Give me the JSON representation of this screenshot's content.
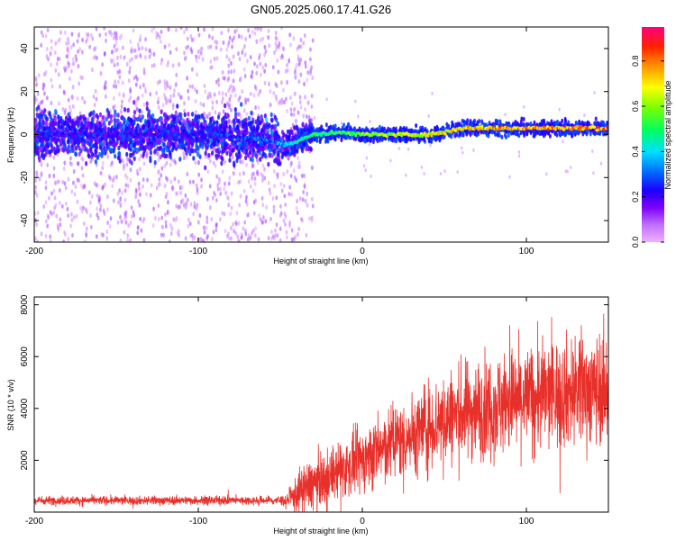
{
  "title": "GN05.2025.060.17.41.G26",
  "chart_data": [
    {
      "type": "heatmap",
      "xlabel": "Height of straight line (km)",
      "ylabel": "Frequency (Hz)",
      "xlim": [
        -200,
        150
      ],
      "ylim": [
        -50,
        50
      ],
      "xticks": [
        -200,
        -100,
        0,
        100
      ],
      "yticks": [
        -40,
        -20,
        0,
        20,
        40
      ],
      "colorbar": {
        "label": "Normalized spectral amplitude",
        "range": [
          0.0,
          0.95
        ],
        "ticks": [
          0.0,
          0.2,
          0.4,
          0.6,
          0.8
        ],
        "colormap": [
          "#ff00ff",
          "#7f00ff",
          "#0000ff",
          "#00ffff",
          "#00ff00",
          "#ffff00",
          "#ff8000",
          "#ff0000",
          "#ff0080"
        ]
      },
      "ridge": {
        "description_points": [
          [
            -200,
            0
          ],
          [
            -150,
            0
          ],
          [
            -100,
            0
          ],
          [
            -60,
            -2
          ],
          [
            -48,
            -5
          ],
          [
            -40,
            -3
          ],
          [
            -30,
            0
          ],
          [
            -10,
            1
          ],
          [
            0,
            0
          ],
          [
            20,
            0
          ],
          [
            40,
            0
          ],
          [
            50,
            1
          ],
          [
            60,
            3
          ],
          [
            80,
            3
          ],
          [
            100,
            3
          ],
          [
            120,
            3
          ],
          [
            150,
            3
          ]
        ],
        "peak_amplitude": [
          [
            -200,
            0.3
          ],
          [
            -100,
            0.3
          ],
          [
            -50,
            0.4
          ],
          [
            -40,
            0.5
          ],
          [
            0,
            0.65
          ],
          [
            40,
            0.75
          ],
          [
            60,
            0.8
          ],
          [
            100,
            0.88
          ],
          [
            150,
            0.9
          ]
        ]
      },
      "noise_scatter_extent_km": [
        -200,
        -30
      ]
    },
    {
      "type": "line",
      "xlabel": "Height of straight line (km)",
      "ylabel": "SNR (10 * v/v)",
      "xlim": [
        -200,
        150
      ],
      "ylim": [
        0,
        8300
      ],
      "xticks": [
        -200,
        -100,
        0,
        100
      ],
      "yticks": [
        2000,
        4000,
        6000,
        8000
      ],
      "color": "#e8302a",
      "envelope": {
        "x": [
          -200,
          -150,
          -100,
          -60,
          -45,
          -40,
          -35,
          -30,
          -20,
          -10,
          0,
          10,
          20,
          30,
          40,
          50,
          60,
          70,
          80,
          90,
          100,
          110,
          120,
          130,
          140,
          150
        ],
        "mean": [
          450,
          450,
          450,
          450,
          450,
          700,
          900,
          1100,
          1400,
          1700,
          2000,
          2400,
          2700,
          3000,
          3300,
          3600,
          3800,
          4000,
          4100,
          4300,
          4400,
          4500,
          4600,
          4700,
          4750,
          4800
        ],
        "amplitude": [
          150,
          150,
          150,
          150,
          200,
          700,
          900,
          900,
          900,
          1000,
          1100,
          1200,
          1300,
          1400,
          1500,
          1600,
          1700,
          1700,
          1800,
          1800,
          1800,
          1900,
          1900,
          1900,
          1900,
          1900
        ]
      }
    }
  ]
}
